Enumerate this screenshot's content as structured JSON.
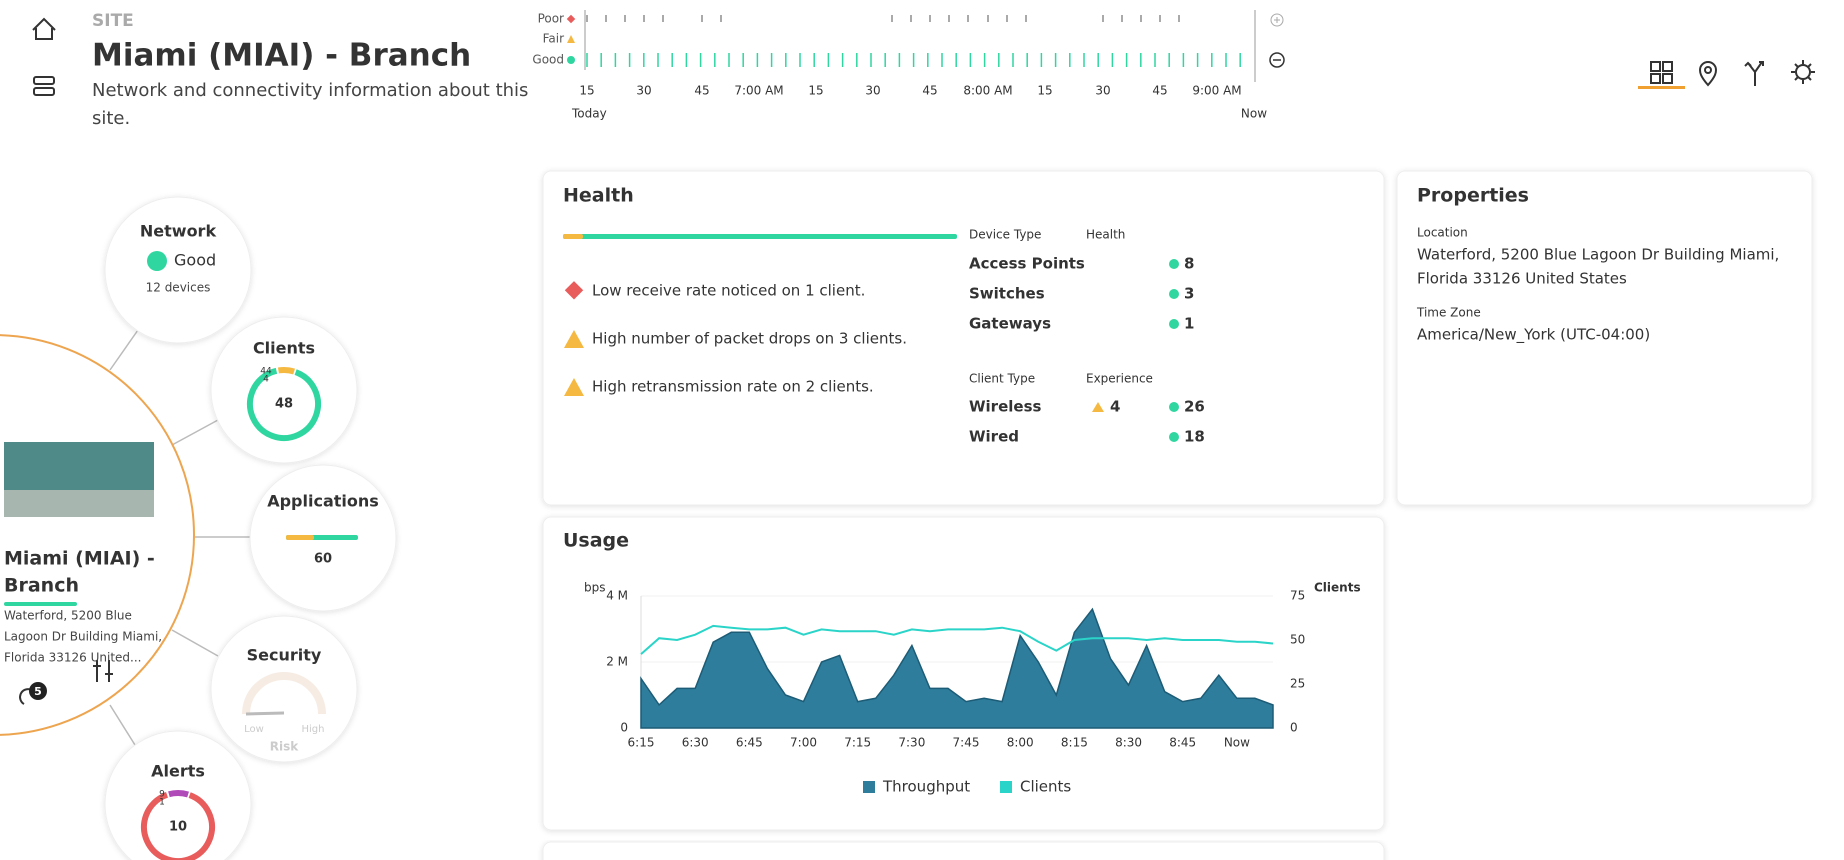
{
  "header": {
    "kicker": "SITE",
    "title": "Miami (MIAI) - Branch",
    "subtitle_lines": [
      "Network and connectivity information about this",
      "site."
    ]
  },
  "timeline": {
    "levels": [
      "Poor",
      "Fair",
      "Good"
    ],
    "time_labels": [
      "15",
      "30",
      "45",
      "7:00 AM",
      "15",
      "30",
      "45",
      "8:00 AM",
      "15",
      "30",
      "45",
      "9:00 AM"
    ],
    "start": "Today",
    "end": "Now"
  },
  "site_panel": {
    "name_lines": [
      "Miami (MIAI) -",
      "Branch"
    ],
    "address_lines": [
      "Waterford, 5200 Blue",
      "Lagoon Dr Building Miami,",
      "Florida 33126 United..."
    ],
    "badge": "5",
    "network": {
      "title": "Network",
      "status": "Good",
      "devices": "12 devices"
    },
    "clients": {
      "title": "Clients",
      "total": 48,
      "good": 44,
      "fair": 4
    },
    "applications": {
      "title": "Applications",
      "total": 60
    },
    "security": {
      "title": "Security",
      "low": "Low",
      "high": "High",
      "risk": "Risk"
    },
    "alerts": {
      "title": "Alerts",
      "total": 10,
      "poor": 9,
      "fair": 1
    }
  },
  "health": {
    "title": "Health",
    "issues": [
      "Low receive rate noticed on 1 client.",
      "High number of packet drops on 3 clients.",
      "High retransmission rate on 2 clients."
    ],
    "device_header": [
      "Device Type",
      "Health"
    ],
    "devices": [
      {
        "type": "Access Points",
        "count": 8
      },
      {
        "type": "Switches",
        "count": 3
      },
      {
        "type": "Gateways",
        "count": 1
      }
    ],
    "client_header": [
      "Client Type",
      "Experience"
    ],
    "clients": [
      {
        "type": "Wireless",
        "fair": 4,
        "good": 26
      },
      {
        "type": "Wired",
        "good": 18
      }
    ]
  },
  "properties": {
    "title": "Properties",
    "location_label": "Location",
    "location_lines": [
      "Waterford, 5200 Blue Lagoon Dr Building Miami,",
      "Florida 33126 United States"
    ],
    "timezone_label": "Time Zone",
    "timezone": "America/New_York (UTC-04:00)"
  },
  "usage": {
    "title": "Usage",
    "type": "area",
    "ylabel": "bps",
    "y2label": "Clients",
    "categories": [
      "6:15",
      null,
      null,
      "6:30",
      null,
      null,
      "6:45",
      null,
      null,
      "7:00",
      null,
      null,
      "7:15",
      null,
      null,
      "7:30",
      null,
      null,
      "7:45",
      null,
      null,
      "8:00",
      null,
      null,
      "8:15",
      null,
      null,
      "8:30",
      null,
      null,
      "8:45",
      null,
      null,
      "Now",
      null,
      null
    ],
    "ylim": [
      0,
      4
    ],
    "yticks": [
      0,
      {
        "value": 2,
        "label": "2 M"
      },
      {
        "value": 4,
        "label": "4 M"
      }
    ],
    "y2lim": [
      0,
      75
    ],
    "y2ticks": [
      0,
      25,
      50,
      75
    ],
    "series": [
      {
        "name": "Throughput",
        "color": "#2f7d9c",
        "values": [
          1.5,
          0.7,
          1.2,
          1.2,
          2.6,
          2.9,
          2.9,
          1.8,
          1.0,
          0.8,
          2.0,
          2.2,
          0.8,
          0.9,
          1.6,
          2.5,
          1.2,
          1.2,
          0.8,
          0.9,
          0.8,
          2.8,
          2.0,
          1.0,
          2.9,
          3.6,
          2.1,
          1.3,
          2.5,
          1.1,
          0.8,
          0.9,
          1.6,
          0.9,
          0.9,
          0.7
        ]
      },
      {
        "name": "Clients",
        "color": "#2bd4c8",
        "axis": "y2",
        "values": [
          42,
          51,
          50,
          53,
          58,
          57,
          56,
          56,
          57,
          53,
          56,
          55,
          55,
          55,
          53,
          56,
          55,
          56,
          56,
          56,
          57,
          55,
          49,
          44,
          50,
          51,
          51,
          51,
          50,
          51,
          50,
          50,
          50,
          49,
          49,
          48
        ]
      }
    ]
  }
}
